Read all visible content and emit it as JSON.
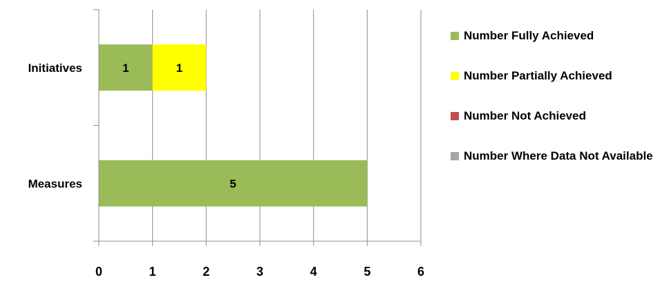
{
  "chart_data": {
    "type": "bar",
    "orientation": "horizontal",
    "stacked": true,
    "categories": [
      "Initiatives",
      "Measures"
    ],
    "series": [
      {
        "name": "Number Fully Achieved",
        "color": "#9BBB59",
        "values": [
          1,
          5
        ]
      },
      {
        "name": "Number Partially Achieved",
        "color": "#FFFF00",
        "values": [
          1,
          0
        ]
      },
      {
        "name": "Number Not Achieved",
        "color": "#C0504D",
        "values": [
          0,
          0
        ]
      },
      {
        "name": "Number Where Data Not Available",
        "color": "#A6A6A6",
        "values": [
          0,
          0
        ]
      }
    ],
    "xlim": [
      0,
      6
    ],
    "xticks": [
      "0",
      "1",
      "2",
      "3",
      "4",
      "5",
      "6"
    ],
    "grid": "vertical",
    "legend_position": "right",
    "data_labels": [
      {
        "series": 0,
        "category": 0,
        "text": "1"
      },
      {
        "series": 1,
        "category": 0,
        "text": "1"
      },
      {
        "series": 0,
        "category": 1,
        "text": "5"
      }
    ],
    "title": "",
    "xlabel": "",
    "ylabel": ""
  }
}
